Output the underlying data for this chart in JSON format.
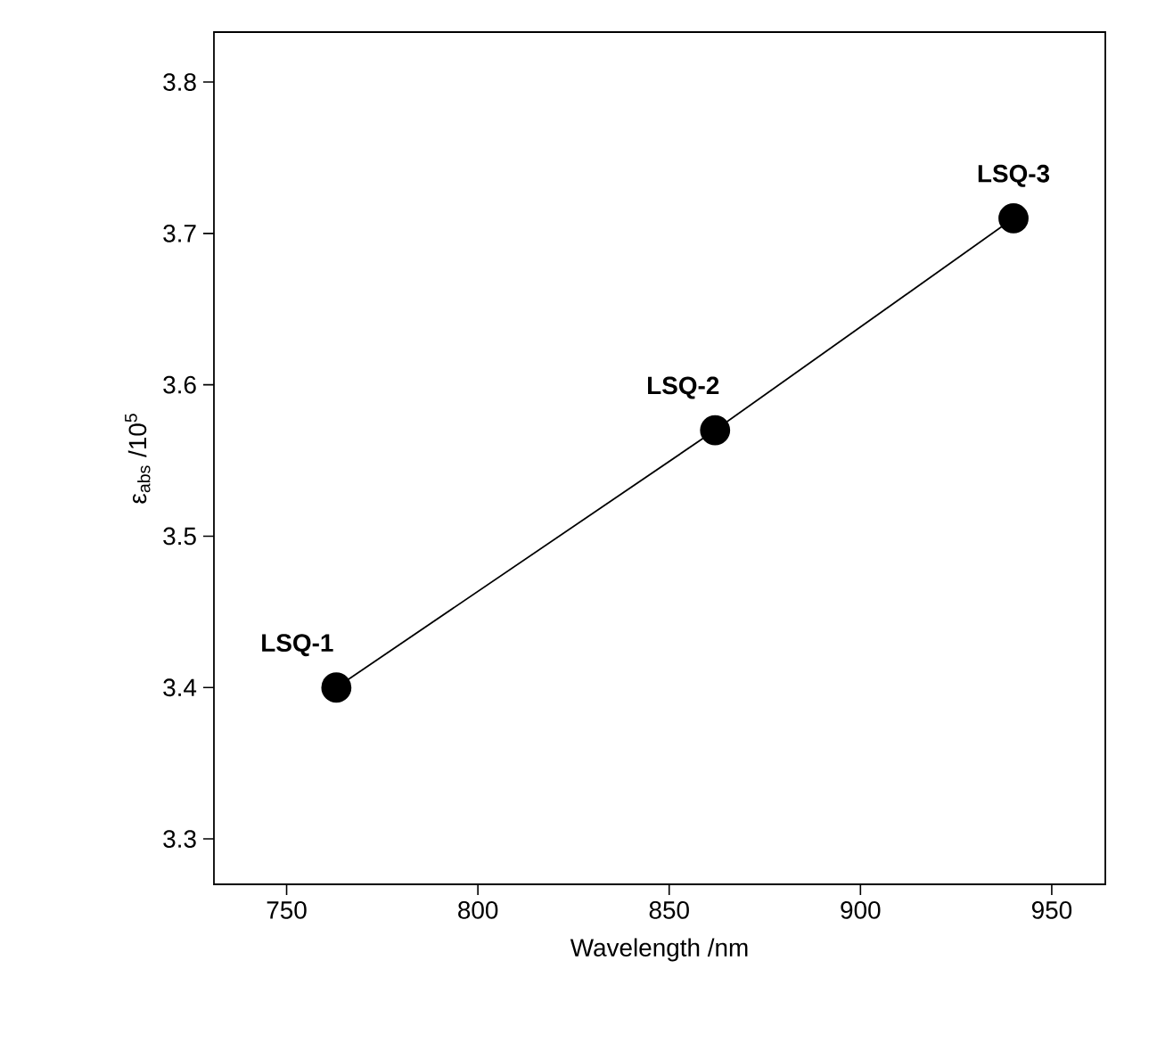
{
  "chart_data": {
    "type": "line",
    "xlabel": "Wavelength /nm",
    "ylabel": "ε$_{abs}$ /10$^{5}$",
    "x": [
      763,
      862,
      940
    ],
    "values": [
      3.4,
      3.57,
      3.71
    ],
    "color": "#000000",
    "marker": "circle",
    "line_style": "solid",
    "xlim": [
      731,
      964
    ],
    "ylim": [
      3.27,
      3.833
    ],
    "xticks": [
      750,
      800,
      850,
      900,
      950
    ],
    "yticks": [
      3.3,
      3.4,
      3.5,
      3.6,
      3.7,
      3.8
    ],
    "annotations": [
      {
        "text": "LSQ-1",
        "x": 763,
        "y": 3.4
      },
      {
        "text": "LSQ-2",
        "x": 862,
        "y": 3.57
      },
      {
        "text": "LSQ-3",
        "x": 940,
        "y": 3.71
      }
    ]
  }
}
